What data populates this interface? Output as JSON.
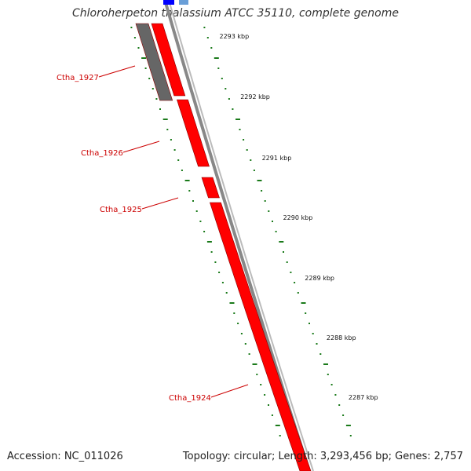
{
  "title": "Chloroherpeton thalassium ATCC 35110, complete genome",
  "footer": {
    "accession": "Accession: NC_011026",
    "summary": "Topology: circular; Length: 3,293,456 bp; Genes: 2,757"
  },
  "colors": {
    "gene_forward": "#ff0000",
    "gene_other": "#666666",
    "gene_blue": "#0000ff",
    "gene_lightblue": "#6a9fd8",
    "backbone": "#888888",
    "tick": "#1a7a1a",
    "label": "#cc0000"
  },
  "genes": [
    {
      "name": "Ctha_1927"
    },
    {
      "name": "Ctha_1926"
    },
    {
      "name": "Ctha_1925"
    },
    {
      "name": "Ctha_1924"
    }
  ],
  "scale": {
    "unit": "kbp",
    "labels": [
      "2293 kbp",
      "2292 kbp",
      "2291 kbp",
      "2290 kbp",
      "2289 kbp",
      "2288 kbp",
      "2287 kbp"
    ]
  }
}
